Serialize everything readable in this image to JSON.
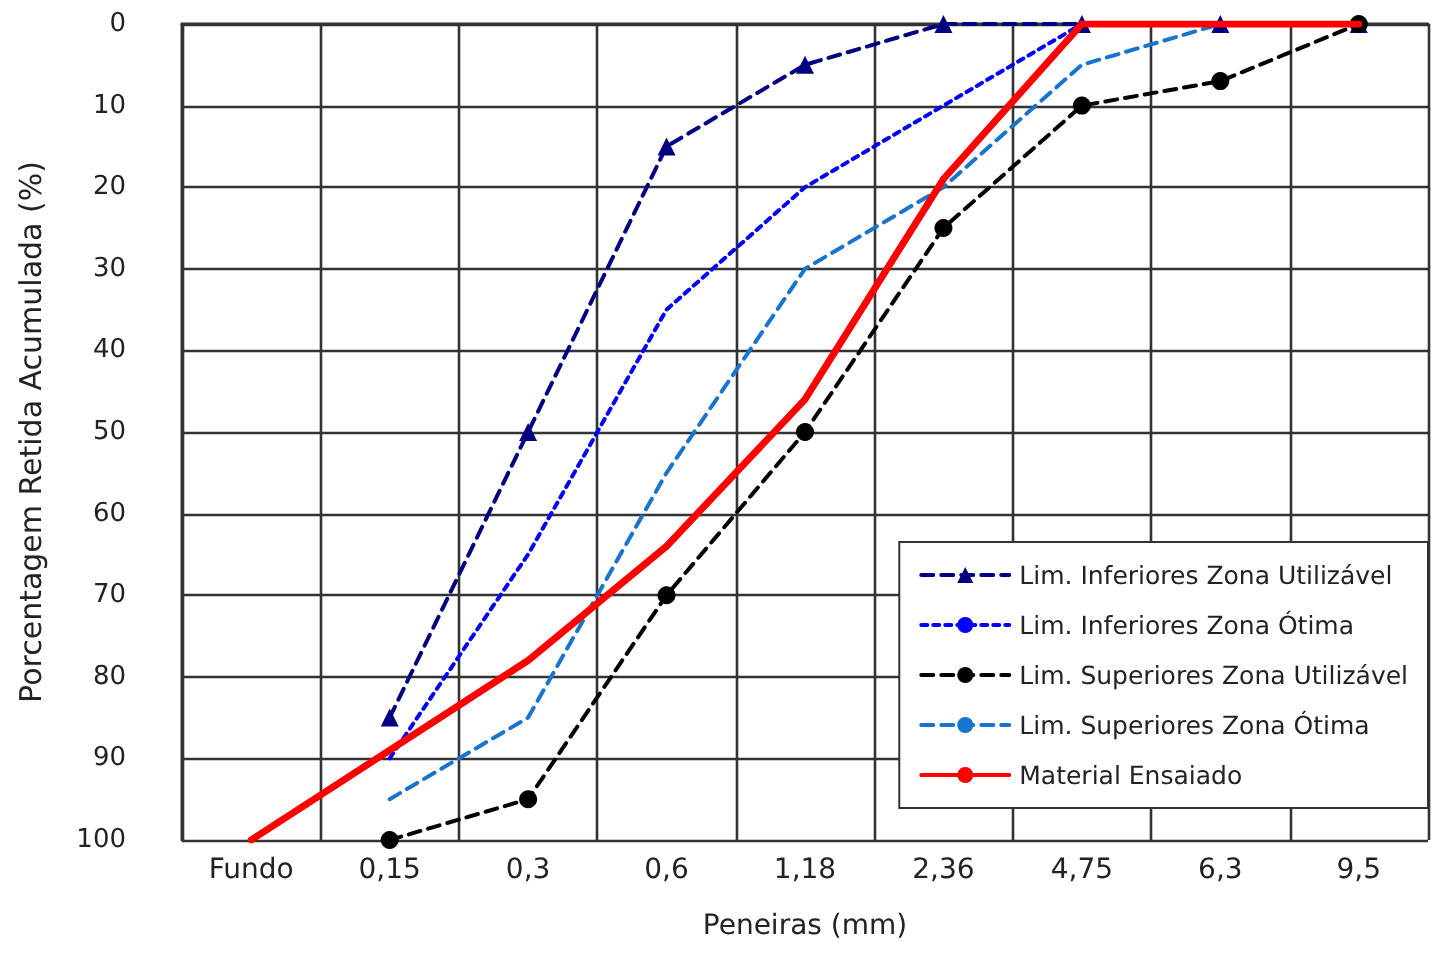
{
  "chart_data": {
    "type": "line",
    "xlabel": "Peneiras (mm)",
    "ylabel": "Porcentagem Retida Acumulada (%)",
    "categories": [
      "Fundo",
      "0,15",
      "0,3",
      "0,6",
      "1,18",
      "2,36",
      "4,75",
      "6,3",
      "9,5"
    ],
    "ylim": [
      100,
      0
    ],
    "yticks": [
      0,
      10,
      20,
      30,
      40,
      50,
      60,
      70,
      80,
      90,
      100
    ],
    "grid": true,
    "legend": "bottom right",
    "series": [
      {
        "name": "Lim. Inferiores Zona Utilizável",
        "color": "#000080",
        "marker": "triangle",
        "line_style": "dashed",
        "values": [
          null,
          85,
          50,
          15,
          5,
          0,
          0,
          0,
          0
        ]
      },
      {
        "name": "Lim. Inferiores Zona Ótima",
        "color": "#0000ff",
        "marker": "none",
        "line_style": "dotted",
        "values": [
          null,
          90,
          65,
          35,
          20,
          10,
          0,
          0,
          0
        ]
      },
      {
        "name": "Lim. Superiores Zona Utilizável",
        "color": "#000000",
        "marker": "circle",
        "line_style": "dashed",
        "values": [
          null,
          100,
          95,
          70,
          50,
          25,
          10,
          7,
          0
        ]
      },
      {
        "name": "Lim. Superiores Zona Ótima",
        "color": "#1874cd",
        "marker": "none",
        "line_style": "dashed",
        "values": [
          null,
          95,
          85,
          55,
          30,
          20,
          5,
          0,
          0
        ]
      },
      {
        "name": "Material Ensaiado",
        "color": "#ff0000",
        "marker": "none",
        "line_style": "solid",
        "values": [
          100,
          89,
          78,
          64,
          46,
          19,
          0,
          0,
          0
        ]
      }
    ]
  }
}
